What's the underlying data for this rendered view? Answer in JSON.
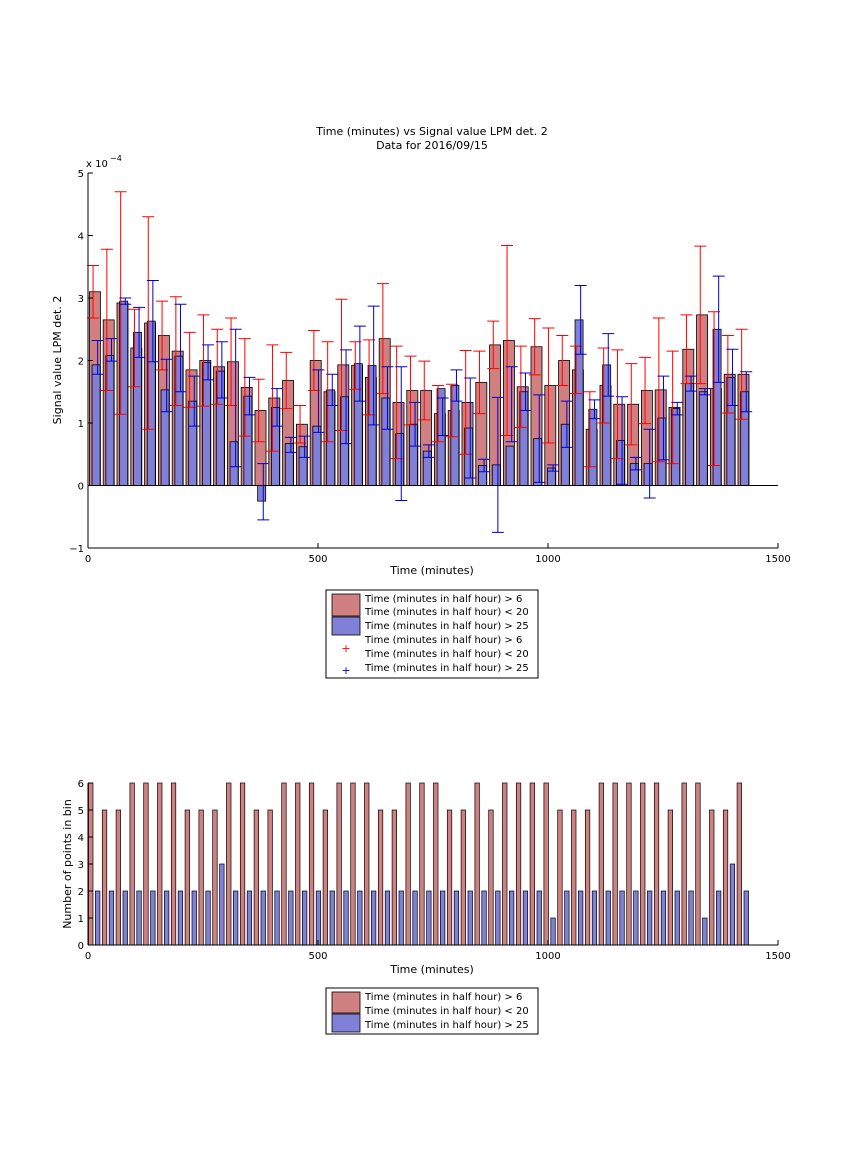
{
  "chart_data": [
    {
      "type": "bar",
      "title": "Time (minutes) vs Signal value LPM det. 2",
      "subtitle": "Data for 2016/09/15",
      "xlabel": "Time (minutes)",
      "ylabel": "Signal value LPM det. 2",
      "y_exponent": "x 10^-4",
      "xlim": [
        0,
        1500
      ],
      "ylim": [
        -1,
        5
      ],
      "xticks": [
        "0",
        "500",
        "1000",
        "1500"
      ],
      "yticks": [
        "−1",
        "0",
        "1",
        "2",
        "3",
        "4",
        "5"
      ],
      "legend": {
        "placement": "below",
        "entries": [
          {
            "label": "Time (minutes in half hour) > 6",
            "kind": "bar",
            "color": "#d08080"
          },
          {
            "label": "Time (minutes in half hour) < 20",
            "kind": "bar",
            "color": "#d08080"
          },
          {
            "label": "Time (minutes in half hour) > 25",
            "kind": "bar",
            "color": "#8080d8"
          },
          {
            "label": "Time (minutes in half hour) > 6",
            "kind": "marker",
            "color": "#ff0000"
          },
          {
            "label": "Time (minutes in half hour) < 20",
            "kind": "marker",
            "color": "#ff0000"
          },
          {
            "label": "Time (minutes in half hour) > 25",
            "kind": "marker",
            "color": "#0000cc"
          }
        ]
      },
      "x_centers": [
        15,
        45,
        75,
        105,
        135,
        165,
        195,
        225,
        255,
        285,
        315,
        345,
        375,
        405,
        435,
        465,
        495,
        525,
        555,
        585,
        615,
        645,
        675,
        705,
        735,
        765,
        795,
        825,
        855,
        885,
        915,
        945,
        975,
        1005,
        1035,
        1065,
        1095,
        1125,
        1155,
        1185,
        1215,
        1245,
        1275,
        1305,
        1335,
        1365,
        1395,
        1425
      ],
      "series": [
        {
          "name": "Time (minutes in half hour) > 6 / < 20",
          "color": "#d08080",
          "values": [
            3.1,
            2.65,
            2.92,
            2.2,
            2.6,
            2.4,
            2.15,
            1.85,
            2.0,
            1.9,
            1.98,
            1.57,
            1.2,
            1.4,
            1.68,
            0.98,
            2.0,
            1.5,
            1.93,
            1.92,
            1.73,
            2.35,
            1.33,
            1.52,
            1.52,
            1.15,
            1.2,
            1.33,
            1.65,
            2.25,
            2.32,
            1.58,
            2.22,
            1.6,
            2.0,
            1.85,
            0.9,
            1.6,
            1.3,
            1.3,
            1.52,
            1.53,
            1.25,
            2.18,
            2.73,
            1.55,
            1.78,
            1.78
          ],
          "err": [
            0.42,
            1.13,
            1.78,
            0.62,
            1.7,
            0.55,
            0.87,
            0.6,
            0.73,
            0.6,
            0.7,
            0.78,
            0.5,
            0.85,
            0.45,
            0.3,
            0.48,
            0.8,
            1.05,
            0.38,
            0.6,
            0.88,
            0.9,
            0.55,
            0.47,
            0.45,
            0.42,
            0.83,
            0.5,
            0.38,
            1.52,
            0.65,
            0.45,
            0.92,
            0.4,
            0.38,
            0.6,
            0.6,
            0.87,
            0.65,
            0.53,
            1.15,
            0.9,
            0.55,
            1.1,
            1.23,
            0.62,
            0.72
          ]
        },
        {
          "name": "Time (minutes in half hour) > 25",
          "color": "#8080d8",
          "values": [
            1.93,
            2.08,
            2.95,
            2.45,
            2.63,
            1.53,
            2.07,
            1.35,
            1.97,
            1.83,
            0.7,
            1.43,
            -0.25,
            1.25,
            0.67,
            0.62,
            0.95,
            1.53,
            1.42,
            1.95,
            1.92,
            1.4,
            0.83,
            0.98,
            0.55,
            1.55,
            1.6,
            0.92,
            0.32,
            0.33,
            0.63,
            1.5,
            0.75,
            0.28,
            0.98,
            2.65,
            1.22,
            1.93,
            0.72,
            0.35,
            0.35,
            1.08,
            1.23,
            1.63,
            1.5,
            2.5,
            1.73,
            1.5
          ]
        }
      ],
      "markers": [
        {
          "name": "Time (minutes in half hour) > 25",
          "color": "#0000cc",
          "y": [
            2.05,
            2.17,
            2.95,
            2.45,
            2.63,
            1.6,
            2.2,
            1.35,
            1.97,
            1.85,
            1.4,
            1.43,
            -0.1,
            1.25,
            0.65,
            0.62,
            1.35,
            1.53,
            1.42,
            1.95,
            1.92,
            1.4,
            0.83,
            0.98,
            0.55,
            1.1,
            1.6,
            0.92,
            0.32,
            0.33,
            1.3,
            1.5,
            0.75,
            0.28,
            0.98,
            2.65,
            1.22,
            1.93,
            0.72,
            0.35,
            0.35,
            1.08,
            1.23,
            1.63,
            1.5,
            2.5,
            1.73,
            1.5
          ],
          "err": [
            0.27,
            0.18,
            0.05,
            0.4,
            0.65,
            0.42,
            0.7,
            0.4,
            0.28,
            0.45,
            1.1,
            0.3,
            0.45,
            0.3,
            0.12,
            0.17,
            0.5,
            0.25,
            0.75,
            0.6,
            0.95,
            0.5,
            1.07,
            0.35,
            0.1,
            0.3,
            0.25,
            0.8,
            0.1,
            1.08,
            0.6,
            0.3,
            0.7,
            0.05,
            0.37,
            0.55,
            0.15,
            0.5,
            0.7,
            0.1,
            0.55,
            0.67,
            0.1,
            0.12,
            0.05,
            0.85,
            0.45,
            0.32
          ]
        }
      ]
    },
    {
      "type": "bar",
      "xlabel": "Time (minutes)",
      "ylabel": "Number of points in bin",
      "xlim": [
        0,
        1500
      ],
      "ylim": [
        0,
        6
      ],
      "xticks": [
        "0",
        "500",
        "1000",
        "1500"
      ],
      "yticks": [
        "0",
        "1",
        "2",
        "3",
        "4",
        "5",
        "6"
      ],
      "legend": {
        "placement": "below",
        "entries": [
          {
            "label": "Time (minutes in half hour) > 6",
            "kind": "bar",
            "color": "#d08080"
          },
          {
            "label": "Time (minutes in half hour) < 20",
            "kind": "bar",
            "color": "#d08080"
          },
          {
            "label": "Time (minutes in half hour) > 25",
            "kind": "bar",
            "color": "#8080d8"
          }
        ]
      },
      "x_centers": [
        15,
        45,
        75,
        105,
        135,
        165,
        195,
        225,
        255,
        285,
        315,
        345,
        375,
        405,
        435,
        465,
        495,
        525,
        555,
        585,
        615,
        645,
        675,
        705,
        735,
        765,
        795,
        825,
        855,
        885,
        915,
        945,
        975,
        1005,
        1035,
        1065,
        1095,
        1125,
        1155,
        1185,
        1215,
        1245,
        1275,
        1305,
        1335,
        1365,
        1395,
        1425
      ],
      "series": [
        {
          "name": "Time (minutes in half hour) > 6 / < 20",
          "color": "#d08080",
          "values": [
            6,
            5,
            5,
            6,
            6,
            6,
            6,
            5,
            5,
            5,
            6,
            6,
            5,
            5,
            6,
            6,
            6,
            5,
            6,
            6,
            6,
            5,
            5,
            6,
            6,
            6,
            5,
            5,
            6,
            5,
            6,
            6,
            6,
            6,
            5,
            5,
            5,
            6,
            6,
            6,
            6,
            6,
            5,
            6,
            6,
            5,
            5,
            6
          ]
        },
        {
          "name": "Time (minutes in half hour) > 25",
          "color": "#8080d8",
          "values": [
            2,
            2,
            2,
            2,
            2,
            2,
            2,
            2,
            2,
            3,
            2,
            2,
            2,
            2,
            2,
            2,
            2,
            2,
            2,
            2,
            2,
            2,
            2,
            2,
            2,
            2,
            2,
            2,
            2,
            2,
            2,
            2,
            2,
            1,
            2,
            2,
            2,
            2,
            2,
            2,
            2,
            2,
            2,
            2,
            1,
            2,
            3,
            2
          ]
        }
      ]
    }
  ]
}
